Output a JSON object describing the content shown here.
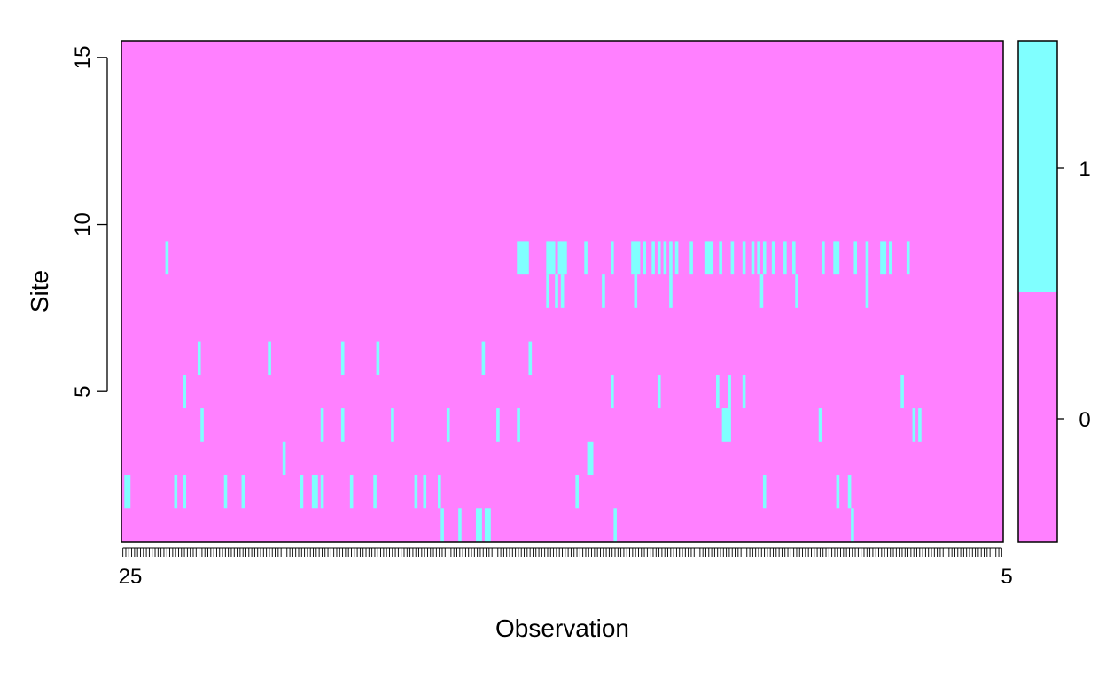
{
  "chart_data": {
    "type": "heatmap",
    "xlabel": "Observation",
    "ylabel": "Site",
    "x_range": [
      1,
      301
    ],
    "y_range": [
      0.5,
      15.5
    ],
    "y_ticks": [
      5,
      10,
      15
    ],
    "x_tick_labels_visible": [
      "25",
      "5"
    ],
    "legend": {
      "position": "right",
      "levels": [
        {
          "value": "0",
          "color": "#ff80ff"
        },
        {
          "value": "1",
          "color": "#80ffff"
        }
      ]
    },
    "background_value": 0,
    "cells_value_1": [
      {
        "site": 9,
        "observations": [
          16,
          136,
          137,
          138,
          139,
          146,
          147,
          148,
          150,
          151,
          152,
          159,
          168,
          175,
          176,
          177,
          179,
          182,
          184,
          186,
          188,
          190,
          195,
          200,
          201,
          202,
          205,
          209,
          213,
          216,
          218,
          220,
          223,
          227,
          230,
          240,
          244,
          245,
          251,
          255,
          260,
          261,
          263,
          269
        ]
      },
      {
        "site": 8,
        "observations": [
          146,
          149,
          151,
          165,
          176,
          188,
          219,
          231,
          255
        ]
      },
      {
        "site": 6,
        "observations": [
          27,
          51,
          76,
          88,
          124,
          140
        ]
      },
      {
        "site": 5,
        "observations": [
          22,
          168,
          184,
          204,
          208,
          213,
          267
        ]
      },
      {
        "site": 4,
        "observations": [
          28,
          69,
          76,
          93,
          112,
          129,
          136,
          206,
          207,
          208,
          239,
          271,
          273
        ]
      },
      {
        "site": 3,
        "observations": [
          56,
          160,
          161
        ]
      },
      {
        "site": 2,
        "observations": [
          2,
          3,
          19,
          22,
          36,
          42,
          62,
          66,
          67,
          69,
          79,
          87,
          101,
          104,
          109,
          156,
          220,
          245,
          249
        ]
      },
      {
        "site": 1,
        "observations": [
          110,
          116,
          122,
          123,
          125,
          126,
          169,
          250
        ]
      }
    ]
  }
}
